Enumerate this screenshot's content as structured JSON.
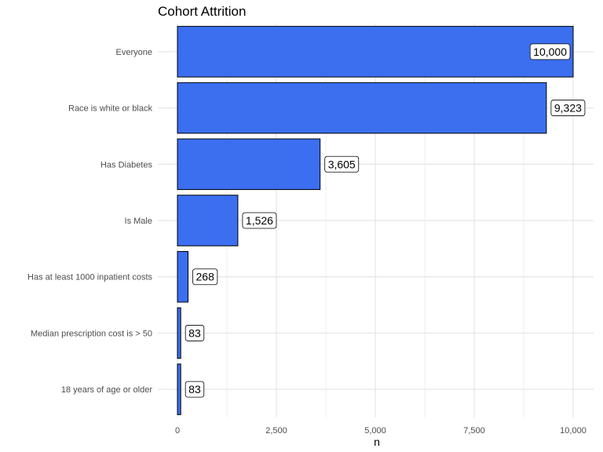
{
  "chart_data": {
    "type": "bar",
    "orientation": "horizontal",
    "title": "Cohort Attrition",
    "xlabel": "n",
    "ylabel": "",
    "xlim": [
      0,
      10000
    ],
    "x_ticks": [
      0,
      2500,
      5000,
      7500,
      10000
    ],
    "x_tick_labels": [
      "0",
      "2,500",
      "5,000",
      "7,500",
      "10,000"
    ],
    "categories": [
      "Everyone",
      "Race is white or black",
      "Has Diabetes",
      "Is Male",
      "Has at least 1000 inpatient costs",
      "Median prescription cost is > 50",
      "18 years of age or older"
    ],
    "values": [
      10000,
      9323,
      3605,
      1526,
      268,
      83,
      83
    ],
    "data_labels": [
      "10,000",
      "9,323",
      "3,605",
      "1,526",
      "268",
      "83",
      "83"
    ],
    "grid": true,
    "legend": "none",
    "bar_color": "#3b6ff0",
    "bar_outline_color": "#000000"
  }
}
